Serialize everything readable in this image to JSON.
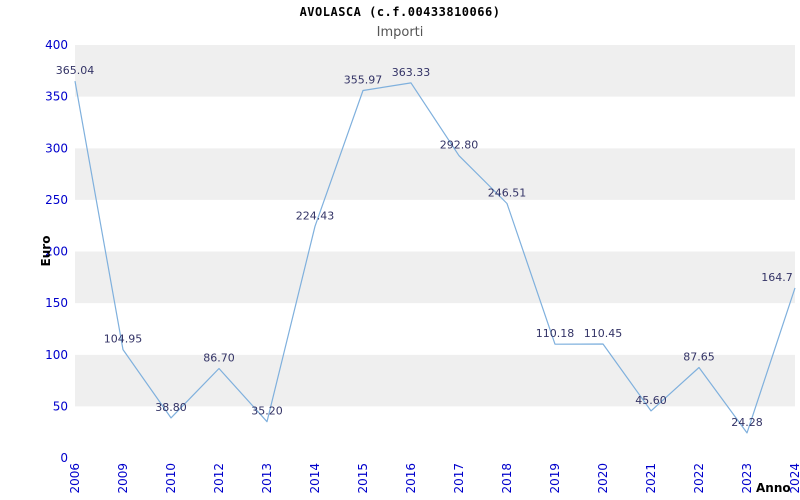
{
  "chart_data": {
    "type": "line",
    "title": "AVOLASCA (c.f.00433810066)",
    "subtitle": "Importi",
    "xlabel": "Anno",
    "ylabel": "Euro",
    "categories": [
      "2006",
      "2009",
      "2010",
      "2012",
      "2013",
      "2014",
      "2015",
      "2016",
      "2017",
      "2018",
      "2019",
      "2020",
      "2021",
      "2022",
      "2023",
      "2024"
    ],
    "values": [
      365.04,
      104.95,
      38.8,
      86.7,
      35.2,
      224.43,
      355.97,
      363.33,
      292.8,
      246.51,
      110.18,
      110.45,
      45.6,
      87.65,
      24.28,
      164.7
    ],
    "point_labels": [
      "365.04",
      "104.95",
      "38.80",
      "86.70",
      "35.20",
      "224.43",
      "355.97",
      "363.33",
      "292.80",
      "246.51",
      "110.18",
      "110.45",
      "45.60",
      "87.65",
      "24.28",
      "164.7"
    ],
    "ylim": [
      0,
      400
    ],
    "ytick_step": 50,
    "yticks": [
      0,
      50,
      100,
      150,
      200,
      250,
      300,
      350,
      400
    ],
    "grid": "horizontal alternating bands",
    "legend": "none",
    "colors": {
      "line": "#7fb0dd",
      "band": "#efefef",
      "band_alt": "#ffffff",
      "axis_text": "#0000cc",
      "point_label": "#333366",
      "title": "#000000",
      "subtitle": "#555555",
      "axis_title": "#000000"
    }
  }
}
